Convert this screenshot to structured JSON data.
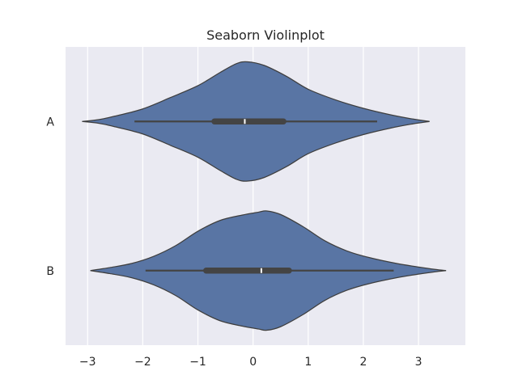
{
  "chart_data": {
    "type": "violin",
    "orientation": "horizontal",
    "title": "Seaborn Violinplot",
    "xlabel": "",
    "ylabel": "",
    "xlim": [
      -3.4,
      3.85
    ],
    "x_ticks": [
      -3,
      -2,
      -1,
      0,
      1,
      2,
      3
    ],
    "x_tick_labels": [
      "−3",
      "−2",
      "−1",
      "0",
      "1",
      "2",
      "3"
    ],
    "categories": [
      "A",
      "B"
    ],
    "grid": true,
    "series": [
      {
        "category": "A",
        "color": "#5975a4",
        "density_range": [
          -3.1,
          3.2
        ],
        "density": [
          [
            -3.1,
            0.0
          ],
          [
            -2.8,
            0.03
          ],
          [
            -2.5,
            0.09
          ],
          [
            -2.0,
            0.21
          ],
          [
            -1.5,
            0.4
          ],
          [
            -1.0,
            0.6
          ],
          [
            -0.6,
            0.82
          ],
          [
            -0.3,
            0.97
          ],
          [
            -0.1,
            1.0
          ],
          [
            0.2,
            0.94
          ],
          [
            0.6,
            0.76
          ],
          [
            1.0,
            0.54
          ],
          [
            1.5,
            0.36
          ],
          [
            2.0,
            0.22
          ],
          [
            2.5,
            0.11
          ],
          [
            2.9,
            0.04
          ],
          [
            3.2,
            0.0
          ]
        ],
        "whisker_low": -2.15,
        "q1": -0.7,
        "median": -0.15,
        "q3": 0.55,
        "whisker_high": 2.25
      },
      {
        "category": "B",
        "color": "#5975a4",
        "density_range": [
          -2.95,
          3.5
        ],
        "density": [
          [
            -2.95,
            0.0
          ],
          [
            -2.6,
            0.05
          ],
          [
            -2.2,
            0.12
          ],
          [
            -1.8,
            0.24
          ],
          [
            -1.4,
            0.42
          ],
          [
            -1.0,
            0.66
          ],
          [
            -0.6,
            0.84
          ],
          [
            -0.2,
            0.93
          ],
          [
            0.1,
            0.98
          ],
          [
            0.25,
            1.0
          ],
          [
            0.5,
            0.94
          ],
          [
            0.9,
            0.74
          ],
          [
            1.3,
            0.5
          ],
          [
            1.7,
            0.33
          ],
          [
            2.1,
            0.22
          ],
          [
            2.6,
            0.12
          ],
          [
            3.0,
            0.06
          ],
          [
            3.3,
            0.02
          ],
          [
            3.5,
            0.0
          ]
        ],
        "whisker_low": -1.95,
        "q1": -0.85,
        "median": 0.15,
        "q3": 0.65,
        "whisker_high": 2.55
      }
    ]
  }
}
